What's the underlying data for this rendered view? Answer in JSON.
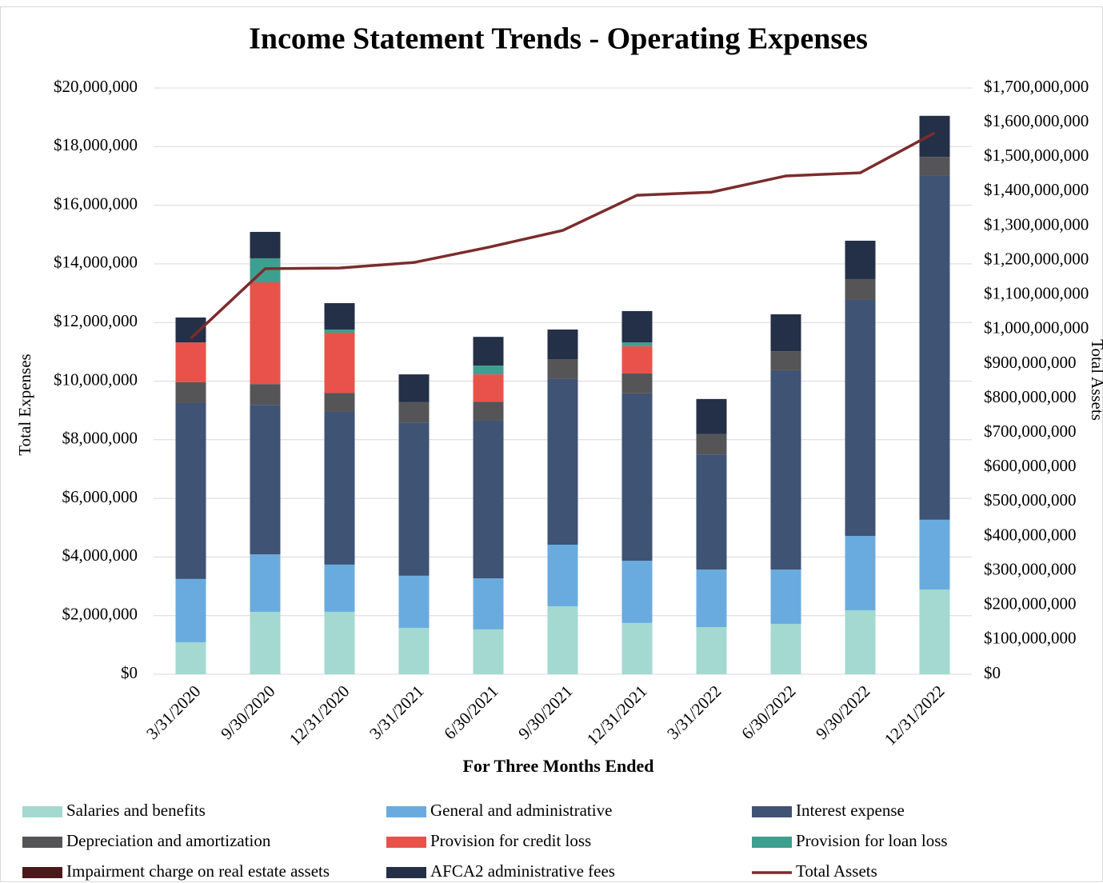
{
  "chart_data": {
    "type": "bar",
    "stacked": true,
    "title": "Income Statement Trends - Operating Expenses",
    "x_label": "For Three Months Ended",
    "y_label": "Total Expenses",
    "y2_label": "Total Assets",
    "categories": [
      "3/31/2020",
      "9/30/2020",
      "12/31/2020",
      "3/31/2021",
      "6/30/2021",
      "9/30/2021",
      "12/31/2021",
      "3/31/2022",
      "6/30/2022",
      "9/30/2022",
      "12/31/2022"
    ],
    "series": [
      {
        "name": "Salaries and benefits",
        "color": "#a3d9d0",
        "values": [
          1090000,
          2130000,
          2130000,
          1580000,
          1530000,
          2320000,
          1750000,
          1610000,
          1720000,
          2180000,
          2890000
        ]
      },
      {
        "name": "General and administrative",
        "color": "#6aabdf",
        "values": [
          2160000,
          1960000,
          1610000,
          1780000,
          1740000,
          2100000,
          2120000,
          1960000,
          1850000,
          2540000,
          2380000
        ]
      },
      {
        "name": "Interest expense",
        "color": "#3f5375",
        "values": [
          6000000,
          5100000,
          5210000,
          5230000,
          5380000,
          5650000,
          5710000,
          3930000,
          6800000,
          8050000,
          11730000
        ]
      },
      {
        "name": "Depreciation and amortization",
        "color": "#555558",
        "values": [
          710000,
          710000,
          650000,
          690000,
          650000,
          680000,
          680000,
          690000,
          650000,
          710000,
          650000
        ]
      },
      {
        "name": "Provision for credit loss",
        "color": "#e9524a",
        "values": [
          1360000,
          3470000,
          2050000,
          0,
          930000,
          0,
          930000,
          0,
          0,
          0,
          0
        ]
      },
      {
        "name": "Provision for loan loss",
        "color": "#3d9f8f",
        "values": [
          0,
          820000,
          110000,
          0,
          300000,
          0,
          130000,
          0,
          0,
          0,
          0
        ]
      },
      {
        "name": "Impairment charge on real estate assets",
        "color": "#4a1a1a",
        "values": [
          0,
          0,
          0,
          0,
          0,
          0,
          0,
          0,
          0,
          0,
          0
        ]
      },
      {
        "name": "AFCA2 administrative fees",
        "color": "#243047",
        "values": [
          850000,
          900000,
          900000,
          950000,
          980000,
          1010000,
          1070000,
          1200000,
          1260000,
          1310000,
          1400000
        ]
      },
      {
        "name": "Total Assets",
        "color": "#7b2c2c",
        "type": "line",
        "axis": "y2",
        "values": [
          974000000,
          1176000000,
          1178000000,
          1194000000,
          1238000000,
          1287000000,
          1389000000,
          1398000000,
          1445000000,
          1454000000,
          1570000000
        ]
      }
    ],
    "ylim": [
      0,
      20000000
    ],
    "yticks": [
      {
        "value": 0,
        "label": "$0"
      },
      {
        "value": 2000000,
        "label": "$2,000,000"
      },
      {
        "value": 4000000,
        "label": "$4,000,000"
      },
      {
        "value": 6000000,
        "label": "$6,000,000"
      },
      {
        "value": 8000000,
        "label": "$8,000,000"
      },
      {
        "value": 10000000,
        "label": "$10,000,000"
      },
      {
        "value": 12000000,
        "label": "$12,000,000"
      },
      {
        "value": 14000000,
        "label": "$14,000,000"
      },
      {
        "value": 16000000,
        "label": "$16,000,000"
      },
      {
        "value": 18000000,
        "label": "$18,000,000"
      },
      {
        "value": 20000000,
        "label": "$20,000,000"
      }
    ],
    "y2lim": [
      0,
      1700000000
    ],
    "y2ticks": [
      {
        "value": 0,
        "label": "$0"
      },
      {
        "value": 100000000,
        "label": "$100,000,000"
      },
      {
        "value": 200000000,
        "label": "$200,000,000"
      },
      {
        "value": 300000000,
        "label": "$300,000,000"
      },
      {
        "value": 400000000,
        "label": "$400,000,000"
      },
      {
        "value": 500000000,
        "label": "$500,000,000"
      },
      {
        "value": 600000000,
        "label": "$600,000,000"
      },
      {
        "value": 700000000,
        "label": "$700,000,000"
      },
      {
        "value": 800000000,
        "label": "$800,000,000"
      },
      {
        "value": 900000000,
        "label": "$900,000,000"
      },
      {
        "value": 1000000000,
        "label": "$1,000,000,000"
      },
      {
        "value": 1100000000,
        "label": "$1,100,000,000"
      },
      {
        "value": 1200000000,
        "label": "$1,200,000,000"
      },
      {
        "value": 1300000000,
        "label": "$1,300,000,000"
      },
      {
        "value": 1400000000,
        "label": "$1,400,000,000"
      },
      {
        "value": 1500000000,
        "label": "$1,500,000,000"
      },
      {
        "value": 1600000000,
        "label": "$1,600,000,000"
      },
      {
        "value": 1700000000,
        "label": "$1,700,000,000"
      }
    ],
    "grid": true,
    "legend": "bottom"
  }
}
